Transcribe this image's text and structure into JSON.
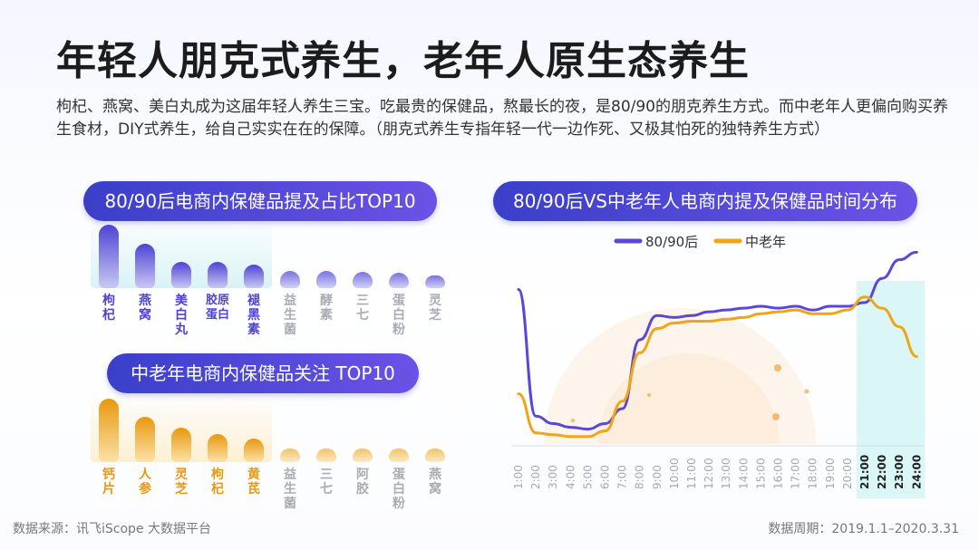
{
  "title": "年轻人朋克式养生，老年人原生态养生",
  "description": "枸杞、燕窝、美白丸成为这届年轻人养生三宝。吃最贵的保健品，熬最长的夜，是80/90的朋克养生方式。而中老年人更偏向购买养生食材，DIY式养生，给自己实实在在的保障。（朋克式养生专指年轻一代一边作死、又极其怕死的独特养生方式）",
  "footer": {
    "source": "数据来源：讯飞iScope 大数据平台",
    "period": "数据周期：2019.1.1–2020.3.31"
  },
  "colors": {
    "purple": "#5a47d9",
    "orange": "#f0a417",
    "gray": "#b9bcc6",
    "pill": "#4b46d6"
  },
  "chart_data": [
    {
      "type": "bar",
      "title": "80/90后电商内保健品提及占比TOP10",
      "categories": [
        "枸杞",
        "燕窝",
        "美白丸",
        "胶原蛋白",
        "褪黑素",
        "益生菌",
        "酵素",
        "三七",
        "蛋白粉",
        "灵芝"
      ],
      "values": [
        100,
        70,
        42,
        42,
        37,
        27,
        27,
        26,
        24,
        20
      ],
      "highlight_count": 5
    },
    {
      "type": "bar",
      "title": "中老年电商内保健品关注 TOP10",
      "categories": [
        "钙片",
        "人参",
        "灵芝",
        "枸杞",
        "黄芪",
        "益生菌",
        "三七",
        "阿胶",
        "蛋白粉",
        "燕窝"
      ],
      "values": [
        100,
        72,
        55,
        44,
        37,
        21,
        21,
        21,
        21,
        21
      ],
      "highlight_count": 5
    },
    {
      "type": "line",
      "title": "80/90后VS中老年人电商内提及保健品时间分布",
      "x": [
        "1:00",
        "2:00",
        "3:00",
        "4:00",
        "5:00",
        "6:00",
        "7:00",
        "8:00",
        "9:00",
        "10:00",
        "11:00",
        "12:00",
        "13:00",
        "14:00",
        "15:00",
        "16:00",
        "17:00",
        "18:00",
        "19:00",
        "20:00",
        "21:00",
        "22:00",
        "23:00",
        "24:00"
      ],
      "series": [
        {
          "name": "80/90后",
          "values": [
            82,
            14,
            10,
            8,
            7,
            10,
            18,
            55,
            68,
            67,
            68,
            70,
            71,
            72,
            73,
            72,
            73,
            71,
            73,
            73,
            75,
            88,
            98,
            102
          ]
        },
        {
          "name": "中老年",
          "values": [
            26,
            5,
            4,
            3,
            3,
            6,
            22,
            48,
            61,
            64,
            65,
            65,
            66,
            67,
            69,
            70,
            71,
            69,
            69,
            71,
            78,
            72,
            62,
            46
          ]
        }
      ],
      "highlight_x": [
        "21:00",
        "22:00",
        "23:00",
        "24:00"
      ],
      "ylim": [
        0,
        110
      ]
    }
  ]
}
